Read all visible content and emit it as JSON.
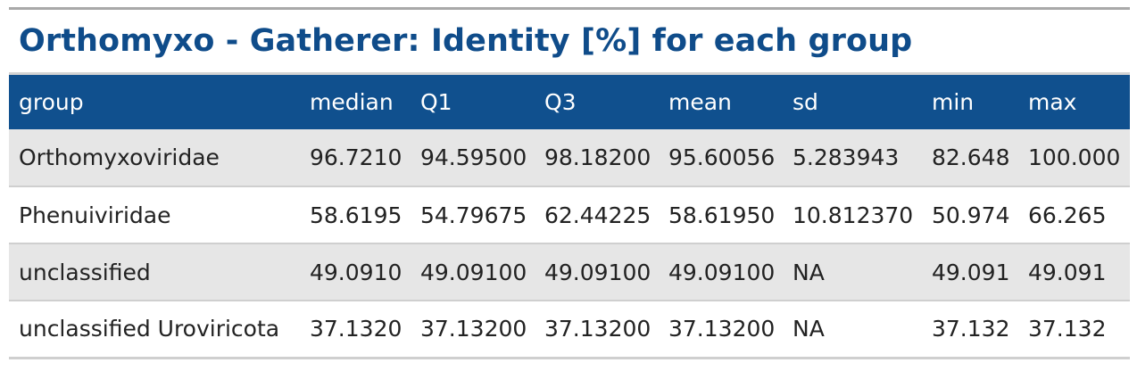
{
  "caption": "Orthomyxo - Gatherer: Identity [%] for each group",
  "table": {
    "headers": [
      "group",
      "median",
      "Q1",
      "Q3",
      "mean",
      "sd",
      "min",
      "max"
    ],
    "rows": [
      [
        "Orthomyxoviridae",
        "96.7210",
        "94.59500",
        "98.18200",
        "95.60056",
        "5.283943",
        "82.648",
        "100.000"
      ],
      [
        "Phenuiviridae",
        "58.6195",
        "54.79675",
        "62.44225",
        "58.61950",
        "10.812370",
        "50.974",
        "66.265"
      ],
      [
        "unclassified",
        "49.0910",
        "49.09100",
        "49.09100",
        "49.09100",
        "NA",
        "49.091",
        "49.091"
      ],
      [
        "unclassified Uroviricota",
        "37.1320",
        "37.13200",
        "37.13200",
        "37.13200",
        "NA",
        "37.132",
        "37.132"
      ]
    ]
  },
  "colors": {
    "caption_text": "#0f4c8a",
    "header_bg": "#10508e",
    "header_text": "#ffffff",
    "row_stripe": "#e6e6e6",
    "rule": "#a9a9a9"
  }
}
